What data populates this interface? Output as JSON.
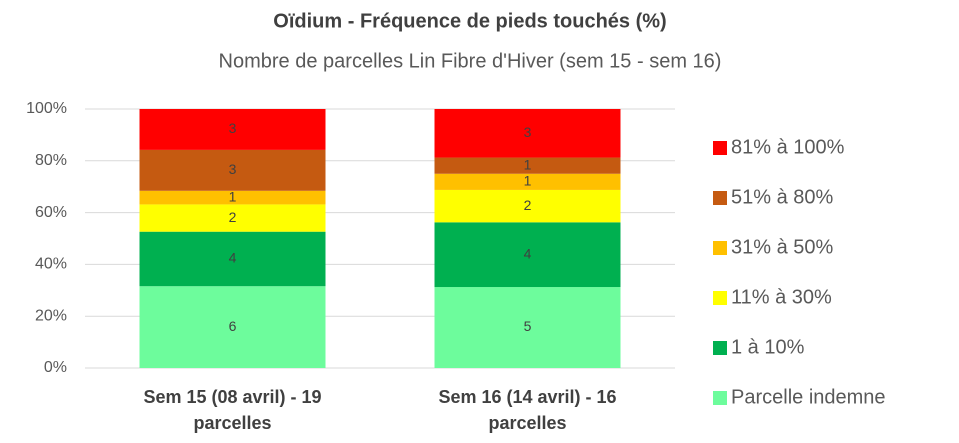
{
  "chart_data": {
    "type": "bar",
    "stacking": "percent",
    "title": "Oïdium - Fréquence de pieds touchés (%)",
    "subtitle": "Nombre de parcelles Lin Fibre d'Hiver (sem 15 - sem 16)",
    "categories": [
      "Sem 15 (08 avril) - 19 parcelles",
      "Sem 16 (14 avril) - 16 parcelles"
    ],
    "series": [
      {
        "name": "Parcelle indemne",
        "color": "#6dfc9c",
        "values": [
          6,
          5
        ]
      },
      {
        "name": "1 à 10%",
        "color": "#00b050",
        "values": [
          4,
          4
        ]
      },
      {
        "name": "11% à 30%",
        "color": "#ffff00",
        "values": [
          2,
          2
        ]
      },
      {
        "name": "31% à 50%",
        "color": "#ffc000",
        "values": [
          1,
          1
        ]
      },
      {
        "name": "51% à 80%",
        "color": "#c55a11",
        "values": [
          3,
          1
        ]
      },
      {
        "name": "81% à 100%",
        "color": "#ff0000",
        "values": [
          3,
          3
        ]
      }
    ],
    "ylim": [
      0,
      100
    ],
    "yticks": [
      {
        "value": 0,
        "label": "0%"
      },
      {
        "value": 20,
        "label": "20%"
      },
      {
        "value": 40,
        "label": "40%"
      },
      {
        "value": 60,
        "label": "60%"
      },
      {
        "value": 80,
        "label": "80%"
      },
      {
        "value": 100,
        "label": "100%"
      }
    ],
    "grid": true,
    "legend": "right"
  }
}
